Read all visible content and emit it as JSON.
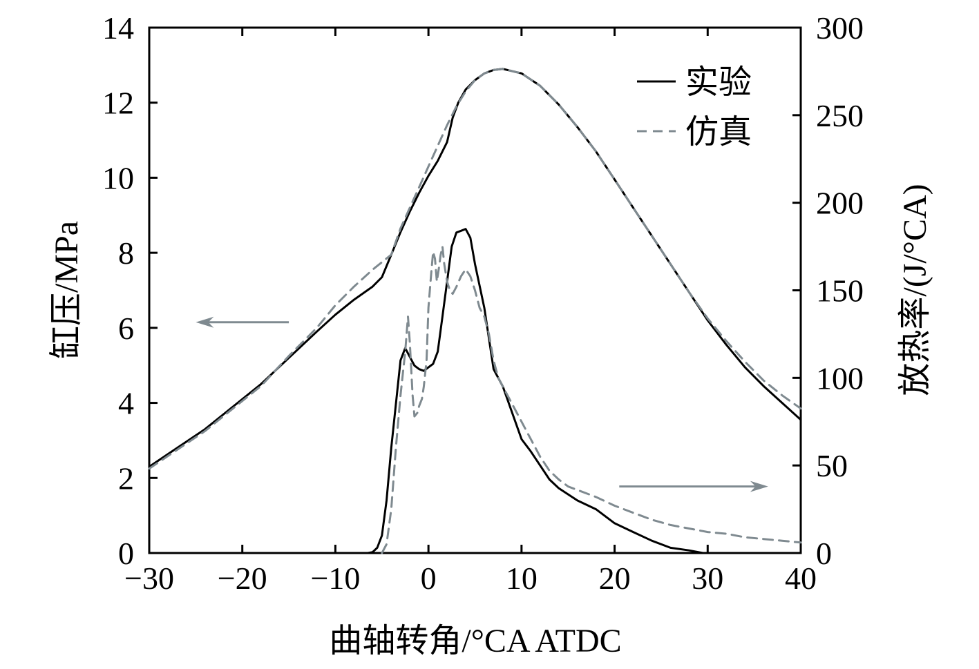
{
  "chart_data": {
    "type": "line",
    "xlabel": "曲轴转角/°CA ATDC",
    "ylabel_left": "缸压/MPa",
    "ylabel_right": "放热率/(J/°CA)",
    "xlim": [
      -30,
      40
    ],
    "ylim_left": [
      0,
      14
    ],
    "ylim_right": [
      0,
      300
    ],
    "x_ticks": [
      -30,
      -20,
      -10,
      0,
      10,
      20,
      30,
      40
    ],
    "x_tick_labels": [
      "−30",
      "−20",
      "−10",
      "0",
      "10",
      "20",
      "30",
      "40"
    ],
    "y_left_ticks": [
      0,
      2,
      4,
      6,
      8,
      10,
      12,
      14
    ],
    "y_left_tick_labels": [
      "0",
      "2",
      "4",
      "6",
      "8",
      "10",
      "12",
      "14"
    ],
    "y_right_ticks": [
      0,
      50,
      100,
      150,
      200,
      250,
      300
    ],
    "y_right_tick_labels": [
      "0",
      "50",
      "100",
      "150",
      "200",
      "250",
      "300"
    ],
    "legend": {
      "position": "top-right",
      "entries": [
        {
          "label": "实验",
          "style": "solid",
          "color": "#000000"
        },
        {
          "label": "仿真",
          "style": "dashed",
          "color": "#7f8a90"
        }
      ]
    },
    "arrows": [
      {
        "name": "left-axis-arrow",
        "direction": "left",
        "from": [
          -15,
          6.15
        ],
        "to": [
          -25,
          6.15
        ],
        "axis": "left"
      },
      {
        "name": "right-axis-arrow",
        "direction": "right",
        "from": [
          20.5,
          38
        ],
        "to": [
          36.5,
          38
        ],
        "axis": "right"
      }
    ],
    "series": [
      {
        "name": "实验 缸压",
        "axis": "left",
        "style": "solid",
        "color": "#000000",
        "x": [
          -30,
          -27,
          -24,
          -21,
          -18,
          -15,
          -12,
          -10,
          -8,
          -6,
          -5,
          -4,
          -3,
          -2,
          -1,
          0,
          1,
          2,
          2.6,
          3.2,
          4,
          5,
          6,
          7,
          8,
          10,
          12,
          14,
          16,
          18,
          20,
          22,
          24,
          26,
          28,
          30,
          32,
          34,
          36,
          38,
          40
        ],
        "y": [
          2.3,
          2.8,
          3.3,
          3.9,
          4.5,
          5.2,
          5.9,
          6.35,
          6.75,
          7.1,
          7.35,
          7.95,
          8.55,
          9.1,
          9.6,
          10.05,
          10.45,
          10.95,
          11.6,
          12.0,
          12.35,
          12.6,
          12.78,
          12.87,
          12.9,
          12.78,
          12.45,
          11.95,
          11.35,
          10.7,
          9.95,
          9.2,
          8.45,
          7.7,
          6.95,
          6.2,
          5.55,
          4.95,
          4.45,
          4.0,
          3.55
        ]
      },
      {
        "name": "仿真 缸压",
        "axis": "left",
        "style": "dashed",
        "color": "#7f8a90",
        "x": [
          -30,
          -27,
          -24,
          -21,
          -18,
          -15,
          -12,
          -10,
          -8,
          -6,
          -4,
          -3,
          -2,
          -1,
          0,
          1,
          2,
          3,
          4,
          5,
          6,
          7,
          8,
          10,
          12,
          14,
          16,
          18,
          20,
          22,
          24,
          26,
          28,
          30,
          32,
          34,
          36,
          38,
          40
        ],
        "y": [
          2.25,
          2.75,
          3.25,
          3.85,
          4.45,
          5.25,
          6.0,
          6.6,
          7.1,
          7.55,
          7.95,
          8.65,
          9.2,
          9.75,
          10.3,
          10.85,
          11.4,
          11.9,
          12.3,
          12.6,
          12.78,
          12.87,
          12.9,
          12.78,
          12.45,
          11.95,
          11.35,
          10.7,
          9.95,
          9.2,
          8.45,
          7.7,
          6.95,
          6.25,
          5.65,
          5.1,
          4.6,
          4.2,
          3.85
        ]
      },
      {
        "name": "实验 放热率",
        "axis": "right",
        "style": "solid",
        "color": "#000000",
        "x": [
          -6.5,
          -6,
          -5.5,
          -5,
          -4.5,
          -4,
          -3.5,
          -3,
          -2.5,
          -2,
          -1.5,
          -1,
          -0.5,
          0,
          0.5,
          1,
          1.5,
          2,
          2.5,
          3,
          3.5,
          4,
          4.5,
          5,
          6,
          7,
          8,
          9,
          10,
          11,
          12,
          13,
          14,
          16,
          18,
          20,
          22,
          24,
          26,
          28,
          29.5
        ],
        "y": [
          0,
          0.5,
          3,
          10,
          30,
          60,
          85,
          110,
          117,
          112,
          107,
          105,
          104,
          106,
          108,
          115,
          135,
          155,
          175,
          183,
          184,
          185,
          180,
          165,
          140,
          105,
          95,
          80,
          65,
          58,
          50,
          42,
          37,
          30,
          25,
          17,
          12,
          7,
          3,
          1.5,
          0
        ]
      },
      {
        "name": "仿真 放热率",
        "axis": "right",
        "style": "dashed",
        "color": "#7f8a90",
        "x": [
          -5,
          -4.5,
          -4,
          -3.5,
          -3,
          -2.5,
          -2.2,
          -2,
          -1.7,
          -1.5,
          -1.2,
          -1,
          -0.7,
          -0.5,
          -0.2,
          0,
          0.3,
          0.5,
          0.7,
          0.9,
          1.1,
          1.3,
          1.5,
          1.7,
          2,
          2.3,
          2.6,
          3,
          3.5,
          4,
          4.5,
          5,
          5.5,
          6,
          6.5,
          7,
          7.5,
          8,
          9,
          10,
          11,
          12,
          13,
          14,
          15,
          16,
          18,
          20,
          22,
          24,
          26,
          28,
          30,
          32,
          34,
          36,
          38,
          40
        ],
        "y": [
          0,
          5,
          25,
          60,
          90,
          115,
          135,
          120,
          90,
          78,
          80,
          84,
          88,
          95,
          110,
          140,
          160,
          172,
          168,
          155,
          162,
          170,
          175,
          165,
          155,
          150,
          148,
          152,
          158,
          162,
          158,
          150,
          140,
          135,
          125,
          110,
          100,
          95,
          85,
          75,
          65,
          55,
          47,
          42,
          38,
          36,
          32,
          27,
          23,
          19,
          16,
          14,
          12,
          11,
          9,
          8,
          7,
          6
        ]
      }
    ]
  }
}
